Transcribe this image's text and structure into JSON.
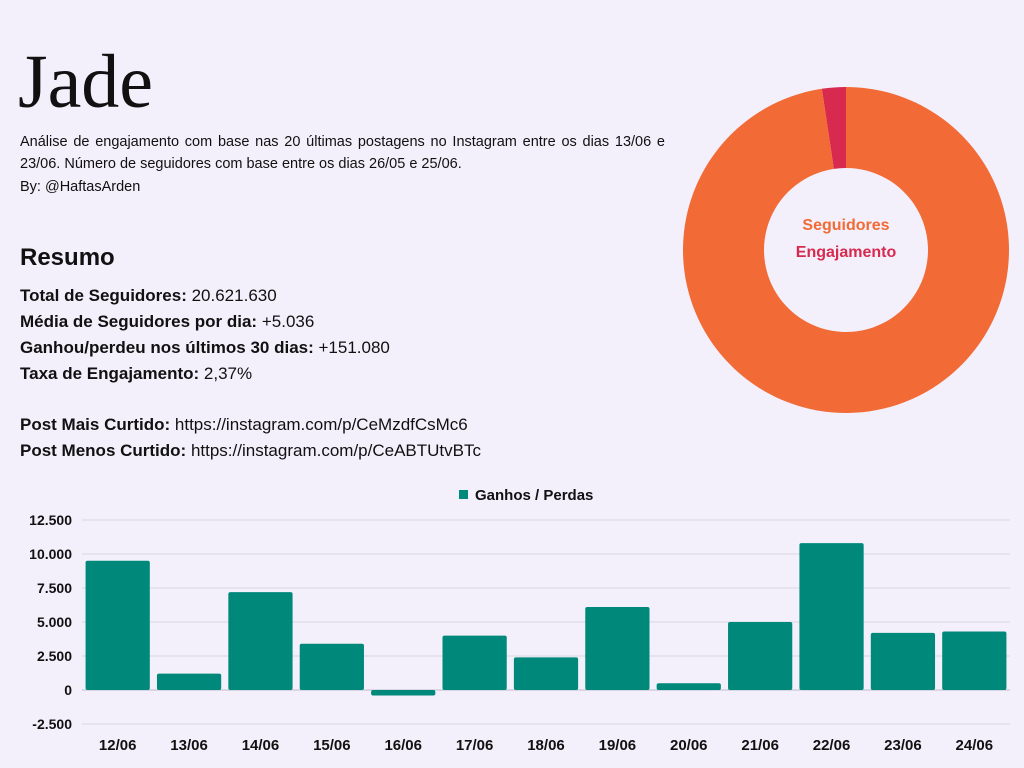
{
  "header": {
    "title": "Jade",
    "subtitle": "Análise de engajamento com base nas 20 últimas postagens no Instagram entre os dias 13/06 e 23/06. Número de seguidores com base entre os dias 26/05 e 25/06.",
    "byline": "By: @HaftasArden"
  },
  "summary": {
    "heading": "Resumo",
    "total_label": "Total de Seguidores:",
    "total_value": " 20.621.630",
    "avg_label": "Média de Seguidores por dia:",
    "avg_value": " +5.036",
    "gain_label": "Ganhou/perdeu nos últimos 30 dias:",
    "gain_value": " +151.080",
    "rate_label": "Taxa de Engajamento:",
    "rate_value": " 2,37%",
    "most_liked_label": "Post Mais Curtido:",
    "most_liked_value": " https://instagram.com/p/CeMzdfCsMc6",
    "least_liked_label": "Post Menos Curtido:",
    "least_liked_value": " https://instagram.com/p/CeABTUtvBTc"
  },
  "chart_data": [
    {
      "type": "pie",
      "donut": true,
      "slices": [
        {
          "label": "Seguidores",
          "value": 97.63,
          "color": "#f26a35"
        },
        {
          "label": "Engajamento",
          "value": 2.37,
          "color": "#d8294f"
        }
      ]
    },
    {
      "type": "bar",
      "categories": [
        "12/06",
        "13/06",
        "14/06",
        "15/06",
        "16/06",
        "17/06",
        "18/06",
        "19/06",
        "20/06",
        "21/06",
        "22/06",
        "23/06",
        "24/06"
      ],
      "series": [
        {
          "name": "Ganhos / Perdas",
          "values": [
            9500,
            1200,
            7200,
            3400,
            -400,
            4000,
            2400,
            6100,
            500,
            5000,
            10800,
            4200,
            4300
          ]
        }
      ],
      "ylim": [
        -2500,
        12500
      ],
      "yticks": [
        -2500,
        0,
        2500,
        5000,
        7500,
        10000,
        12500
      ],
      "ytick_labels": [
        "-2.500",
        "0",
        "2.500",
        "5.000",
        "7.500",
        "10.000",
        "12.500"
      ],
      "legend": "top-center",
      "grid": true,
      "bar_color": "#00897b"
    }
  ]
}
